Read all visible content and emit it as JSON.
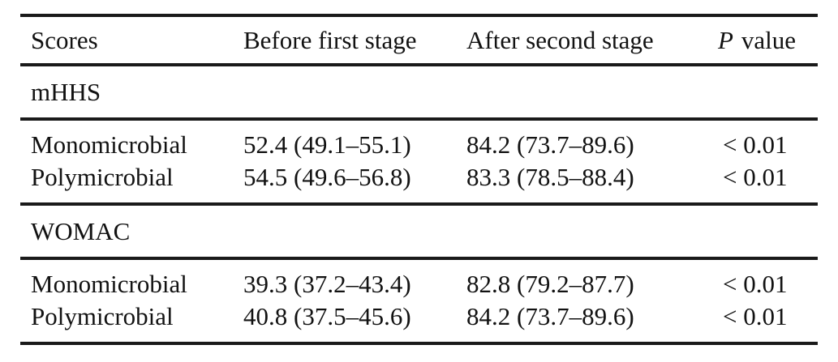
{
  "table": {
    "header": {
      "scores": "Scores",
      "before": "Before first stage",
      "after": "After second stage",
      "p_italic": "P",
      "p_rest": "value"
    },
    "sections": [
      {
        "title": "mHHS",
        "rows": [
          {
            "label": "Monomicrobial",
            "before": "52.4 (49.1–55.1)",
            "after": "84.2 (73.7–89.6)",
            "p": "< 0.01"
          },
          {
            "label": "Polymicrobial",
            "before": "54.5 (49.6–56.8)",
            "after": "83.3 (78.5–88.4)",
            "p": "< 0.01"
          }
        ]
      },
      {
        "title": "WOMAC",
        "rows": [
          {
            "label": "Monomicrobial",
            "before": "39.3 (37.2–43.4)",
            "after": "82.8 (79.2–87.7)",
            "p": "< 0.01"
          },
          {
            "label": "Polymicrobial",
            "before": "40.8 (37.5–45.6)",
            "after": "84.2 (73.7–89.6)",
            "p": "< 0.01"
          }
        ]
      }
    ]
  }
}
